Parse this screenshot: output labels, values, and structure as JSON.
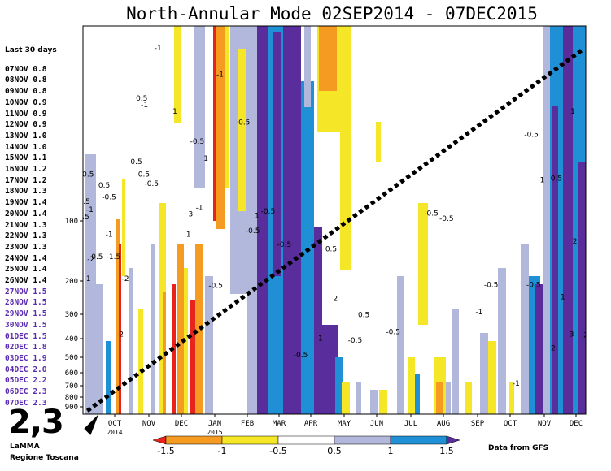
{
  "chart_data": {
    "type": "heatmap",
    "title": "North-Annular Mode 02SEP2014 - 07DEC2015",
    "x_tick_labels": [
      "OCT",
      "NOV",
      "DEC",
      "JAN",
      "FEB",
      "MAR",
      "APR",
      "MAY",
      "JUN",
      "JUL",
      "AUG",
      "SEP",
      "OCT",
      "NOV",
      "DEC"
    ],
    "x_year_labels": [
      {
        "month_index": 0,
        "year": "2014"
      },
      {
        "month_index": 3,
        "year": "2015"
      }
    ],
    "y_tick_labels": [
      "100",
      "200",
      "300",
      "400",
      "500",
      "600",
      "700",
      "800",
      "900"
    ],
    "y_scale": "log pressure",
    "ylim": [
      1000,
      10
    ],
    "colorbar": {
      "ticks": [
        "-1.5",
        "-1",
        "-0.5",
        "0.5",
        "1",
        "1.5"
      ],
      "colors": [
        "#e8231c",
        "#f59b22",
        "#f5e628",
        "#ffffff",
        "#b2b7dc",
        "#1f8fd6",
        "#5a2d9c"
      ]
    },
    "contour_labels": [
      {
        "t": "0.5",
        "x": 0.5,
        "p": 98
      },
      {
        "t": "0.5",
        "x": 1.3,
        "p": 82
      },
      {
        "t": "-0.5",
        "x": 3.5,
        "p": 60
      },
      {
        "t": "-1",
        "x": 6.3,
        "p": 90
      },
      {
        "t": "-2",
        "x": 7.3,
        "p": 160
      },
      {
        "t": "1",
        "x": 5.0,
        "p": 200
      },
      {
        "t": "0.5",
        "x": 13.0,
        "p": 155
      },
      {
        "t": "0.5",
        "x": 19.5,
        "p": 68
      },
      {
        "t": "-0.5",
        "x": 24.0,
        "p": 78
      },
      {
        "t": "-1",
        "x": 24.0,
        "p": 120
      },
      {
        "t": "-1.5",
        "x": 28.0,
        "p": 155
      },
      {
        "t": "-2",
        "x": 39.0,
        "p": 200
      },
      {
        "t": "-2",
        "x": 34.0,
        "p": 390
      },
      {
        "t": "0.5",
        "x": 54.0,
        "p": 25
      },
      {
        "t": "-1",
        "x": 56.5,
        "p": 27
      },
      {
        "t": "0.5",
        "x": 49.0,
        "p": 52
      },
      {
        "t": "0.5",
        "x": 56.0,
        "p": 60
      },
      {
        "t": "-0.5",
        "x": 63.0,
        "p": 67
      },
      {
        "t": "-1",
        "x": 69.0,
        "p": 14
      },
      {
        "t": "1",
        "x": 84.5,
        "p": 29
      },
      {
        "t": "-0.5",
        "x": 105.0,
        "p": 41
      },
      {
        "t": "1",
        "x": 113.0,
        "p": 50
      },
      {
        "t": "-1",
        "x": 126.0,
        "p": 19
      },
      {
        "t": "-0.5",
        "x": 147.0,
        "p": 33
      },
      {
        "t": "-0.5",
        "x": 156.0,
        "p": 115
      },
      {
        "t": "-0.5",
        "x": 122.0,
        "p": 218
      },
      {
        "t": "1",
        "x": 97.0,
        "p": 120
      },
      {
        "t": "3",
        "x": 99.0,
        "p": 95
      },
      {
        "t": "-1",
        "x": 107.0,
        "p": 88
      },
      {
        "t": "1",
        "x": 160.0,
        "p": 97
      },
      {
        "t": "-0.5",
        "x": 170.0,
        "p": 92
      },
      {
        "t": "-0.5",
        "x": 185.0,
        "p": 135
      },
      {
        "t": "0.5",
        "x": 228.0,
        "p": 142
      },
      {
        "t": "0.5",
        "x": 258.0,
        "p": 310
      },
      {
        "t": "2",
        "x": 232.0,
        "p": 255
      },
      {
        "t": "-1",
        "x": 217.0,
        "p": 410
      },
      {
        "t": "-0.5",
        "x": 200.0,
        "p": 500
      },
      {
        "t": "-0.5",
        "x": 250.0,
        "p": 420
      },
      {
        "t": "-0.5",
        "x": 285.0,
        "p": 380
      },
      {
        "t": "-0.5",
        "x": 320.0,
        "p": 94
      },
      {
        "t": "-0.5",
        "x": 334.0,
        "p": 100
      },
      {
        "t": "1",
        "x": 422.0,
        "p": 64
      },
      {
        "t": "-0.5",
        "x": 412.0,
        "p": 38
      },
      {
        "t": "1",
        "x": 450.0,
        "p": 29
      },
      {
        "t": "0.5",
        "x": 435.0,
        "p": 63
      },
      {
        "t": "2",
        "x": 462.0,
        "p": 395
      },
      {
        "t": "3",
        "x": 449.0,
        "p": 390
      },
      {
        "t": "2",
        "x": 452.0,
        "p": 130
      },
      {
        "t": "2",
        "x": 432.0,
        "p": 460
      },
      {
        "t": "1",
        "x": 441.0,
        "p": 250
      },
      {
        "t": "-0.5",
        "x": 375.0,
        "p": 215
      },
      {
        "t": "-1",
        "x": 364.0,
        "p": 300
      },
      {
        "t": "-1",
        "x": 398.0,
        "p": 700
      },
      {
        "t": "-0.5",
        "x": 414.0,
        "p": 215
      }
    ],
    "trend_line": {
      "from": {
        "x": 4,
        "p": 960
      },
      "to": {
        "x": 458,
        "p": 14
      }
    }
  },
  "sidebar": {
    "header": "Last 30 days",
    "rows": [
      {
        "date": "07NOV",
        "value": "0.8"
      },
      {
        "date": "08NOV",
        "value": "0.8"
      },
      {
        "date": "09NOV",
        "value": "0.8"
      },
      {
        "date": "10NOV",
        "value": "0.9"
      },
      {
        "date": "11NOV",
        "value": "0.9"
      },
      {
        "date": "12NOV",
        "value": "0.9"
      },
      {
        "date": "13NOV",
        "value": "1.0"
      },
      {
        "date": "14NOV",
        "value": "1.0"
      },
      {
        "date": "15NOV",
        "value": "1.1"
      },
      {
        "date": "16NOV",
        "value": "1.2"
      },
      {
        "date": "17NOV",
        "value": "1.2"
      },
      {
        "date": "18NOV",
        "value": "1.3"
      },
      {
        "date": "19NOV",
        "value": "1.4"
      },
      {
        "date": "20NOV",
        "value": "1.4"
      },
      {
        "date": "21NOV",
        "value": "1.3"
      },
      {
        "date": "22NOV",
        "value": "1.3"
      },
      {
        "date": "23NOV",
        "value": "1.3"
      },
      {
        "date": "24NOV",
        "value": "1.4"
      },
      {
        "date": "25NOV",
        "value": "1.4"
      },
      {
        "date": "26NOV",
        "value": "1.4"
      },
      {
        "date": "27NOV",
        "value": "1.5"
      },
      {
        "date": "28NOV",
        "value": "1.5"
      },
      {
        "date": "29NOV",
        "value": "1.5"
      },
      {
        "date": "30NOV",
        "value": "1.5"
      },
      {
        "date": "01DEC",
        "value": "1.5"
      },
      {
        "date": "02DEC",
        "value": "1.8"
      },
      {
        "date": "03DEC",
        "value": "1.9"
      },
      {
        "date": "04DEC",
        "value": "2.0"
      },
      {
        "date": "05DEC",
        "value": "2.2"
      },
      {
        "date": "06DEC",
        "value": "2.3"
      },
      {
        "date": "07DEC",
        "value": "2.3"
      }
    ]
  },
  "big_value": "2,3",
  "credit_line1": "LaMMA",
  "credit_line2": "Regione Toscana",
  "source_label": "Data from GFS"
}
